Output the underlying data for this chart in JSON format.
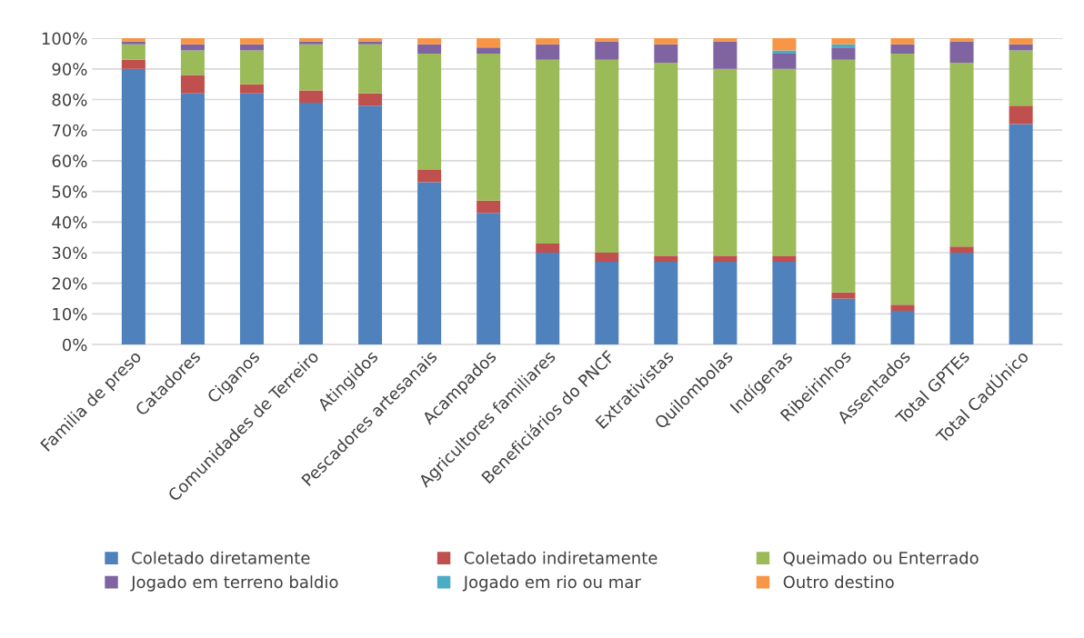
{
  "chart_data": {
    "type": "bar",
    "stacked": true,
    "categories": [
      "Familia de preso",
      "Catadores",
      "Ciganos",
      "Comunidades de Terreiro",
      "Atingidos",
      "Pescadores artesanais",
      "Acampados",
      "Agricultores familiares",
      "Beneficiários do PNCF",
      "Extrativistas",
      "Quilombolas",
      "Indígenas",
      "Ribeirinhos",
      "Assentados",
      "Total GPTEs",
      "Total CadÚnico"
    ],
    "series": [
      {
        "name": "Coletado diretamente",
        "color": "#4f81bd",
        "values": [
          90,
          82,
          82,
          79,
          78,
          53,
          43,
          30,
          27,
          27,
          27,
          27,
          15,
          11,
          30,
          72
        ]
      },
      {
        "name": "Coletado indiretamente",
        "color": "#c0504d",
        "values": [
          3,
          6,
          3,
          4,
          4,
          4,
          4,
          3,
          3,
          2,
          2,
          2,
          2,
          2,
          2,
          6
        ]
      },
      {
        "name": "Queimado ou Enterrado",
        "color": "#9bbb59",
        "values": [
          5,
          8,
          11,
          15,
          16,
          38,
          48,
          60,
          63,
          63,
          61,
          61,
          76,
          82,
          60,
          18
        ]
      },
      {
        "name": "Jogado em terreno baldio",
        "color": "#8064a2",
        "values": [
          1,
          2,
          2,
          1,
          1,
          3,
          2,
          5,
          6,
          6,
          9,
          5,
          4,
          3,
          7,
          2
        ]
      },
      {
        "name": "Jogado em rio ou mar",
        "color": "#4bacc6",
        "values": [
          0,
          0,
          0,
          0,
          0,
          0,
          0,
          0,
          0,
          0,
          0,
          1,
          1,
          0,
          0,
          0
        ]
      },
      {
        "name": "Outro destino",
        "color": "#f79646",
        "values": [
          1,
          2,
          2,
          1,
          1,
          2,
          3,
          2,
          1,
          2,
          1,
          4,
          2,
          2,
          1,
          2
        ]
      }
    ],
    "ylim": [
      0,
      100
    ],
    "yticks": [
      {
        "value": 0,
        "label": "0%"
      },
      {
        "value": 10,
        "label": "10%"
      },
      {
        "value": 20,
        "label": "20%"
      },
      {
        "value": 30,
        "label": "30%"
      },
      {
        "value": 40,
        "label": "40%"
      },
      {
        "value": 50,
        "label": "50%"
      },
      {
        "value": 60,
        "label": "60%"
      },
      {
        "value": 70,
        "label": "70%"
      },
      {
        "value": 80,
        "label": "80%"
      },
      {
        "value": 90,
        "label": "90%"
      },
      {
        "value": 100,
        "label": "100%"
      }
    ],
    "grid": "y",
    "legend": "bottom"
  }
}
